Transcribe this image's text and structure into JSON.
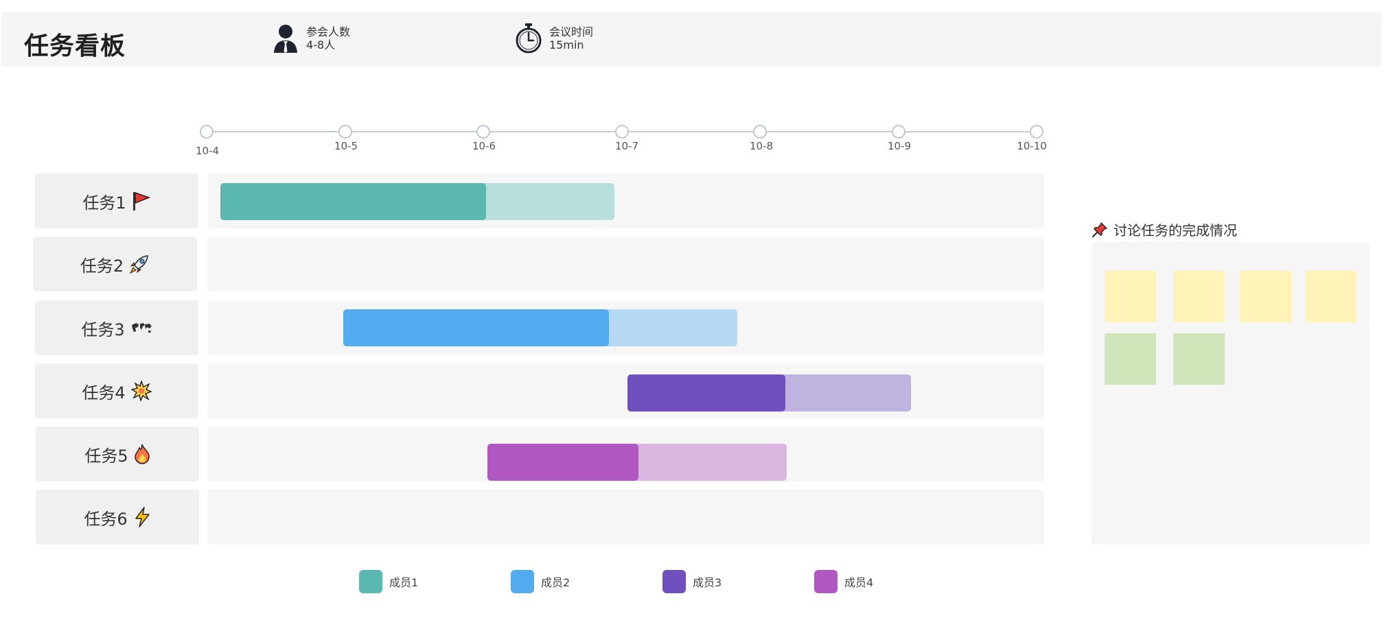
{
  "header": {
    "title": "任务看板",
    "participants": {
      "label": "参会人数",
      "value": "4-8人",
      "icon": "person-icon"
    },
    "meeting_time": {
      "label": "会议时间",
      "value": "15min",
      "icon": "stopwatch-icon"
    }
  },
  "timeline": {
    "dates": [
      "10-4",
      "10-5",
      "10-6",
      "10-7",
      "10-8",
      "10-9",
      "10-10"
    ]
  },
  "tasks": [
    {
      "label": "任务1",
      "icon": "red-flag-icon"
    },
    {
      "label": "任务2",
      "icon": "rocket-icon"
    },
    {
      "label": "任务3",
      "icon": "world-map-icon"
    },
    {
      "label": "任务4",
      "icon": "explosion-icon"
    },
    {
      "label": "任务5",
      "icon": "fire-icon"
    },
    {
      "label": "任务6",
      "icon": "lightning-icon"
    }
  ],
  "members": [
    {
      "name": "成员1",
      "color": "#5bb8b0",
      "light": "#b9dfdc"
    },
    {
      "name": "成员2",
      "color": "#52aaef",
      "light": "#b6d9f3"
    },
    {
      "name": "成员3",
      "color": "#704fbf",
      "light": "#c1b3df"
    },
    {
      "name": "成员4",
      "color": "#b057c2",
      "light": "#dbb6e1"
    }
  ],
  "discussion": {
    "title": "讨论任务的完成情况",
    "icon": "pushpin-icon",
    "notes": [
      {
        "color": "#fff3b8"
      },
      {
        "color": "#fff3b8"
      },
      {
        "color": "#fff3b8"
      },
      {
        "color": "#fff3b8"
      },
      {
        "color": "#cfe6ba"
      },
      {
        "color": "#cfe6ba"
      }
    ]
  }
}
